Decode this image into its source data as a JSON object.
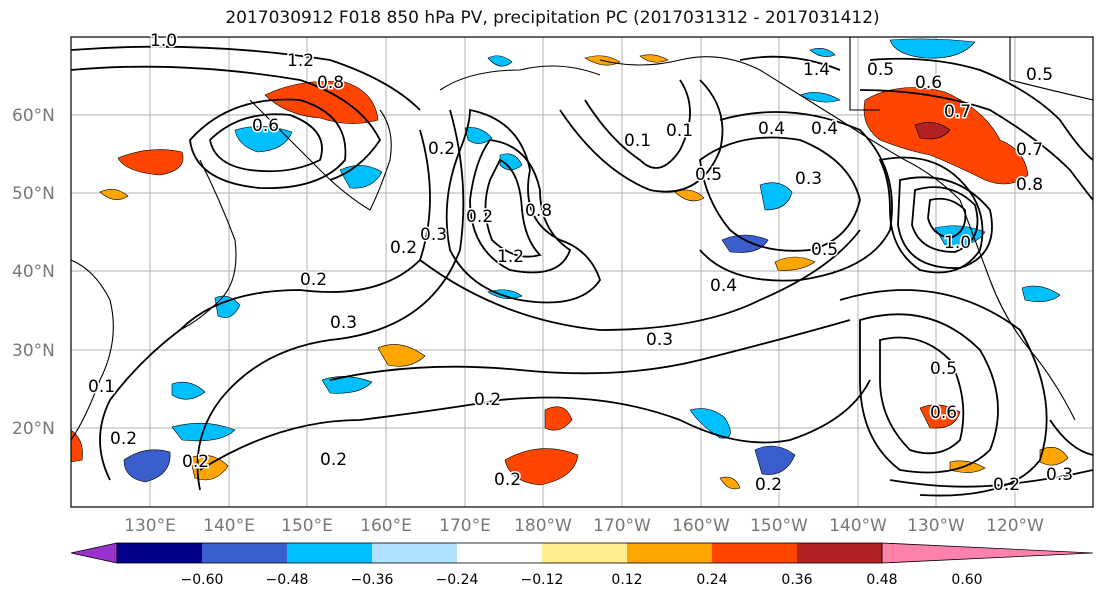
{
  "title": "2017030912 F018 850 hPa PV, precipitation PC (2017031312 - 2017031412)",
  "lat_labels": [
    "60°N",
    "50°N",
    "40°N",
    "30°N",
    "20°N"
  ],
  "lon_labels": [
    "130°E",
    "140°E",
    "150°E",
    "160°E",
    "170°E",
    "180°W",
    "170°W",
    "160°W",
    "150°W",
    "140°W",
    "130°W",
    "120°W"
  ],
  "contour_labels": [
    "1.0",
    "1.2",
    "0.8",
    "0.6",
    "0.2",
    "0.3",
    "0.2",
    "0.2",
    "0.1",
    "0.2",
    "0.2",
    "0.2",
    "0.2",
    "0.2",
    "0.3",
    "1.2",
    "0.8",
    "0.2",
    "0.4",
    "0.3",
    "0.1",
    "0.1",
    "0.5",
    "0.4",
    "1.4",
    "0.5",
    "0.4",
    "0.3",
    "0.5",
    "1.0",
    "0.6",
    "0.7",
    "0.8",
    "0.5",
    "0.7",
    "0.5",
    "0.6",
    "0.2",
    "0.2",
    "0.3"
  ],
  "colorbar": {
    "ticks": [
      "−0.60",
      "−0.48",
      "−0.36",
      "−0.24",
      "−0.12",
      "0.12",
      "0.24",
      "0.36",
      "0.48",
      "0.60"
    ],
    "colors": [
      "#9932cc",
      "#00008b",
      "#3a5fcd",
      "#00bfff",
      "#b0e2ff",
      "#ffffff",
      "#ffec8b",
      "#ffa500",
      "#ff4500",
      "#b22222",
      "#ff82ab"
    ]
  }
}
